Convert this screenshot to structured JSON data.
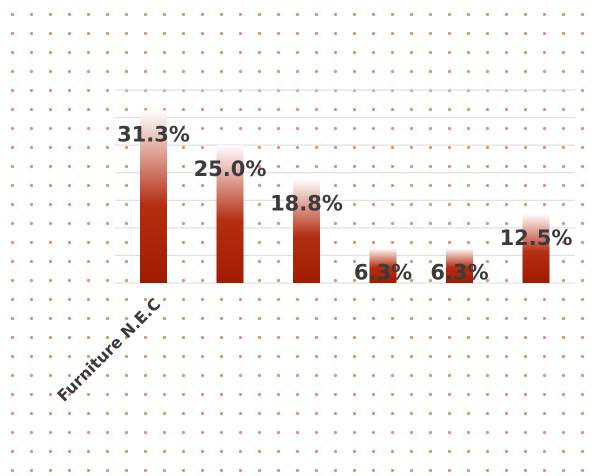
{
  "chart_data": {
    "type": "bar",
    "categories": [
      "Furniture N.E.C",
      "",
      "",
      "",
      "",
      ""
    ],
    "values": [
      31.3,
      25.0,
      18.8,
      6.3,
      6.3,
      12.5
    ],
    "value_labels": [
      "31.3%",
      "25.0%",
      "18.8%",
      "6.3%",
      "6.3%",
      "12.5%"
    ],
    "ylim": [
      0,
      35
    ],
    "grid": true,
    "legend": "none",
    "colors": {
      "bar_bottom": "#a01c00",
      "bar_top": "#ffffff",
      "dots": "#e0937a",
      "grid": "#d9d9d9"
    }
  }
}
